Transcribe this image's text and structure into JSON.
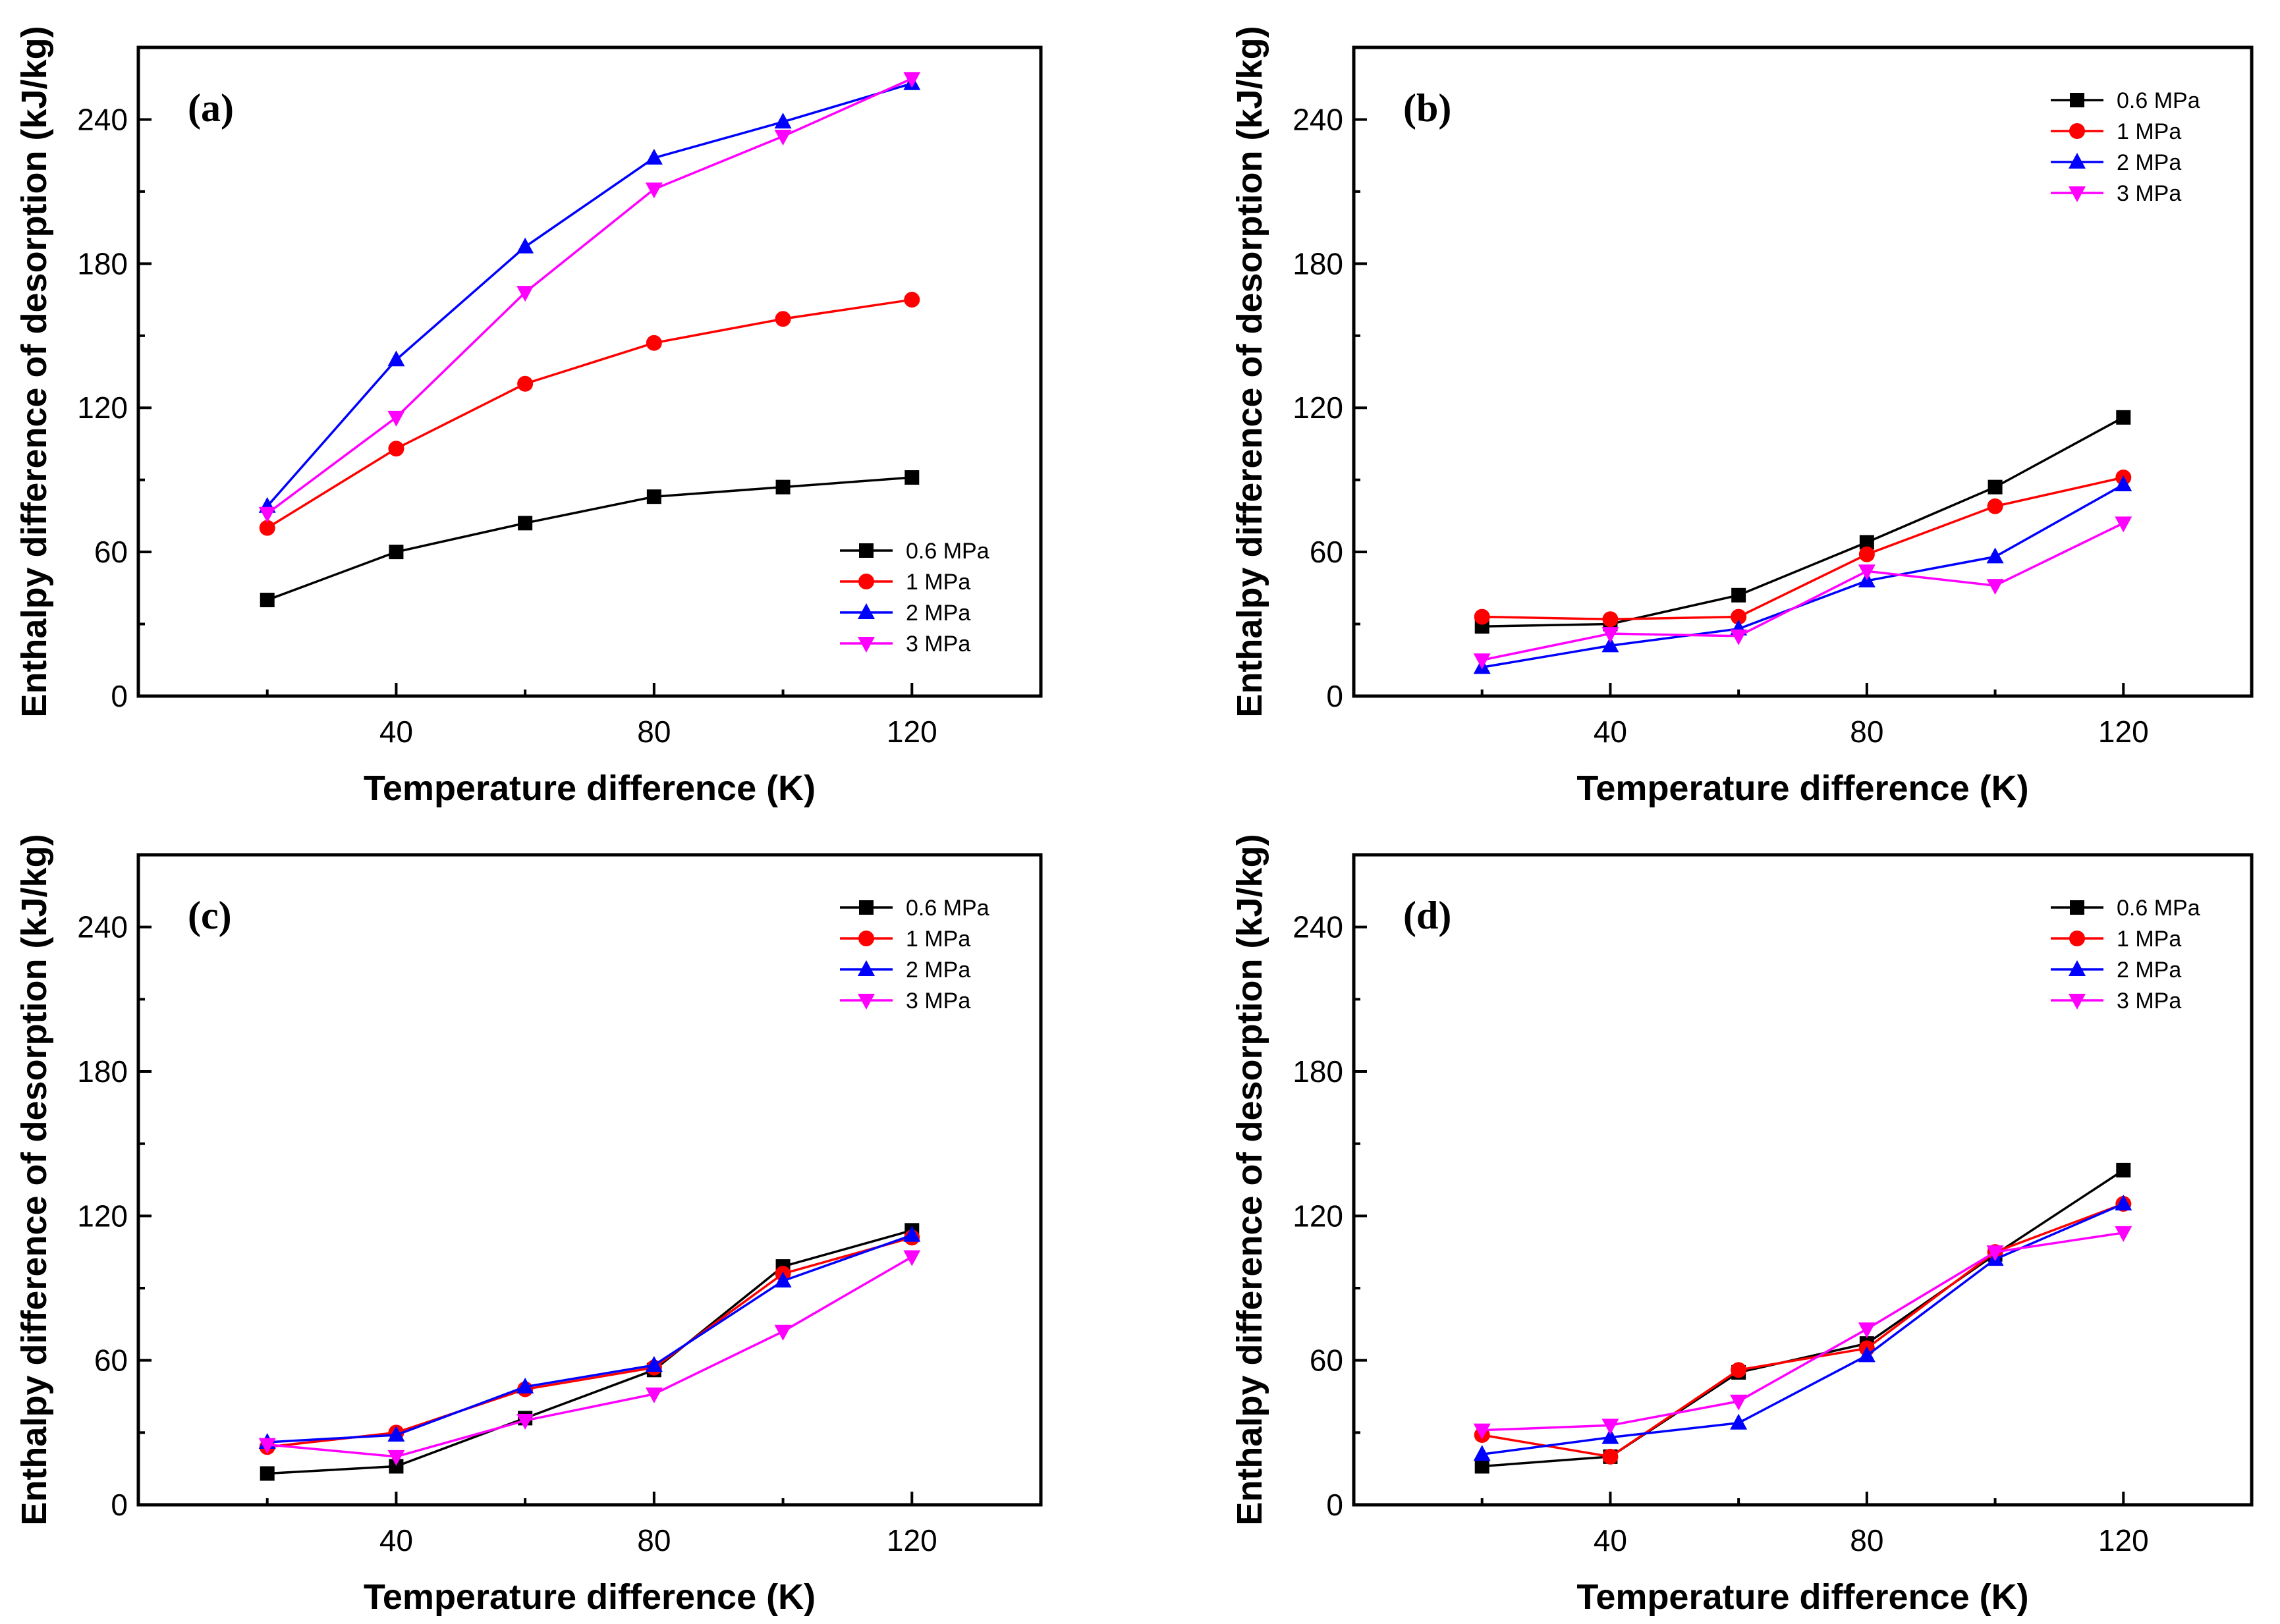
{
  "chart_data": [
    {
      "type": "line",
      "panel_label": "(a)",
      "xlabel": "Temperature difference (K)",
      "ylabel": "Enthalpy difference of desorption (kJ/kg)",
      "xlim": [
        0,
        140
      ],
      "ylim": [
        0,
        270
      ],
      "xticks": [
        40,
        80,
        120
      ],
      "yticks": [
        0,
        60,
        120,
        180,
        240
      ],
      "legend_position": "lower-right",
      "x": [
        20,
        40,
        60,
        80,
        100,
        120
      ],
      "series": [
        {
          "name": "0.6 MPa",
          "color": "#000000",
          "marker": "square",
          "values": [
            40,
            60,
            72,
            83,
            87,
            91
          ]
        },
        {
          "name": "1 MPa",
          "color": "#ff0000",
          "marker": "circle",
          "values": [
            70,
            103,
            130,
            147,
            157,
            165
          ]
        },
        {
          "name": "2 MPa",
          "color": "#0000ff",
          "marker": "triangle-up",
          "values": [
            79,
            140,
            187,
            224,
            239,
            255
          ]
        },
        {
          "name": "3 MPa",
          "color": "#ff00ff",
          "marker": "triangle-down",
          "values": [
            76,
            116,
            168,
            211,
            233,
            257
          ]
        }
      ]
    },
    {
      "type": "line",
      "panel_label": "(b)",
      "xlabel": "Temperature difference (K)",
      "ylabel": "Enthalpy difference of desorption (kJ/kg)",
      "xlim": [
        0,
        140
      ],
      "ylim": [
        0,
        270
      ],
      "xticks": [
        40,
        80,
        120
      ],
      "yticks": [
        0,
        60,
        120,
        180,
        240
      ],
      "legend_position": "top-right",
      "x": [
        20,
        40,
        60,
        80,
        100,
        120
      ],
      "series": [
        {
          "name": "0.6 MPa",
          "color": "#000000",
          "marker": "square",
          "values": [
            29,
            30,
            42,
            64,
            87,
            116
          ]
        },
        {
          "name": "1 MPa",
          "color": "#ff0000",
          "marker": "circle",
          "values": [
            33,
            32,
            33,
            59,
            79,
            91
          ]
        },
        {
          "name": "2 MPa",
          "color": "#0000ff",
          "marker": "triangle-up",
          "values": [
            12,
            21,
            28,
            48,
            58,
            88
          ]
        },
        {
          "name": "3 MPa",
          "color": "#ff00ff",
          "marker": "triangle-down",
          "values": [
            15,
            26,
            25,
            52,
            46,
            72
          ]
        }
      ]
    },
    {
      "type": "line",
      "panel_label": "(c)",
      "xlabel": "Temperature difference (K)",
      "ylabel": "Enthalpy difference of desorption (kJ/kg)",
      "xlim": [
        0,
        140
      ],
      "ylim": [
        0,
        270
      ],
      "xticks": [
        40,
        80,
        120
      ],
      "yticks": [
        0,
        60,
        120,
        180,
        240
      ],
      "legend_position": "top-right",
      "x": [
        20,
        40,
        60,
        80,
        100,
        120
      ],
      "series": [
        {
          "name": "0.6 MPa",
          "color": "#000000",
          "marker": "square",
          "values": [
            13,
            16,
            36,
            56,
            99,
            114
          ]
        },
        {
          "name": "1 MPa",
          "color": "#ff0000",
          "marker": "circle",
          "values": [
            24,
            30,
            48,
            57,
            96,
            111
          ]
        },
        {
          "name": "2 MPa",
          "color": "#0000ff",
          "marker": "triangle-up",
          "values": [
            26,
            29,
            49,
            58,
            93,
            112
          ]
        },
        {
          "name": "3 MPa",
          "color": "#ff00ff",
          "marker": "triangle-down",
          "values": [
            25,
            20,
            35,
            46,
            72,
            103
          ]
        }
      ]
    },
    {
      "type": "line",
      "panel_label": "(d)",
      "xlabel": "Temperature difference (K)",
      "ylabel": "Enthalpy difference of desorption (kJ/kg)",
      "xlim": [
        0,
        140
      ],
      "ylim": [
        0,
        270
      ],
      "xticks": [
        40,
        80,
        120
      ],
      "yticks": [
        0,
        60,
        120,
        180,
        240
      ],
      "legend_position": "top-right",
      "x": [
        20,
        40,
        60,
        80,
        100,
        120
      ],
      "series": [
        {
          "name": "0.6 MPa",
          "color": "#000000",
          "marker": "square",
          "values": [
            16,
            20,
            55,
            67,
            104,
            139
          ]
        },
        {
          "name": "1 MPa",
          "color": "#ff0000",
          "marker": "circle",
          "values": [
            29,
            20,
            56,
            65,
            105,
            125
          ]
        },
        {
          "name": "2 MPa",
          "color": "#0000ff",
          "marker": "triangle-up",
          "values": [
            21,
            28,
            34,
            62,
            102,
            125
          ]
        },
        {
          "name": "3 MPa",
          "color": "#ff00ff",
          "marker": "triangle-down",
          "values": [
            31,
            33,
            43,
            73,
            105,
            113
          ]
        }
      ]
    }
  ]
}
